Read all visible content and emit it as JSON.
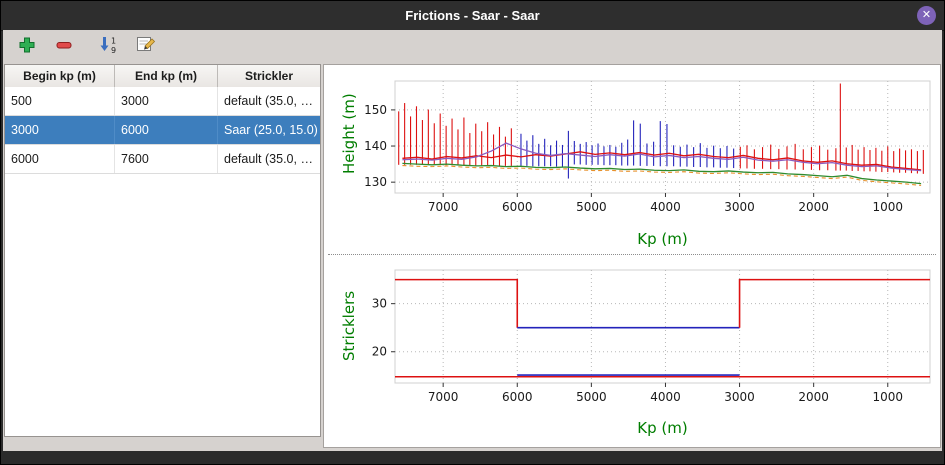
{
  "window": {
    "title": "Frictions - Saar - Saar",
    "close_glyph": "✕"
  },
  "toolbar": {
    "buttons": [
      {
        "label": "add",
        "icon": "plus-icon"
      },
      {
        "label": "remove",
        "icon": "minus-icon"
      },
      {
        "label": "sort",
        "icon": "sort-numeric-icon"
      },
      {
        "label": "edit",
        "icon": "edit-icon"
      }
    ]
  },
  "table": {
    "columns": [
      "Begin kp (m)",
      "End kp (m)",
      "Strickler"
    ],
    "rows": [
      {
        "begin": "500",
        "end": "3000",
        "strickler": "default (35.0, …"
      },
      {
        "begin": "3000",
        "end": "6000",
        "strickler": "Saar (25.0, 15.0)"
      },
      {
        "begin": "6000",
        "end": "7600",
        "strickler": "default (35.0, …"
      }
    ],
    "selected_index": 1
  },
  "colors": {
    "accent_selection": "#3d7ebd",
    "axis_label_green": "#007d00",
    "series_red": "#dd1111",
    "series_blue": "#2323bb",
    "series_purple": "#8a5bbf",
    "series_green": "#2e8b2e",
    "series_orange": "#e8902a"
  },
  "chart_data": [
    {
      "type": "line",
      "title": "",
      "xlabel": "Kp (m)",
      "ylabel": "Height (m)",
      "xlim": [
        7650,
        430
      ],
      "ylim": [
        127,
        158
      ],
      "xticks": [
        7000,
        6000,
        5000,
        4000,
        3000,
        2000,
        1000
      ],
      "yticks": [
        130,
        140,
        150
      ],
      "grid": true,
      "x": [
        7550,
        7350,
        7150,
        6950,
        6750,
        6550,
        6350,
        6150,
        5950,
        5750,
        5550,
        5350,
        5150,
        4950,
        4750,
        4550,
        4350,
        4150,
        3950,
        3750,
        3550,
        3350,
        3150,
        2950,
        2750,
        2550,
        2350,
        2150,
        1950,
        1750,
        1550,
        1350,
        1150,
        950,
        750,
        550
      ],
      "series": [
        {
          "name": "water-level-main",
          "color": "#dd1111",
          "width": 1.3,
          "values": [
            136.6,
            136.9,
            136.4,
            137.1,
            136.7,
            137.3,
            136.8,
            137.5,
            137.0,
            137.6,
            137.2,
            137.8,
            138.4,
            137.7,
            138.1,
            137.6,
            138.2,
            137.5,
            138.0,
            137.3,
            137.7,
            137.1,
            136.8,
            137.4,
            136.6,
            136.2,
            136.7,
            135.9,
            135.5,
            135.9,
            135.1,
            134.7,
            134.9,
            134.2,
            133.8,
            133.4
          ]
        },
        {
          "name": "water-level-secondary",
          "color": "#8a5bbf",
          "width": 1.3,
          "values": [
            136.2,
            136.4,
            136.1,
            136.6,
            136.3,
            137.0,
            138.6,
            140.8,
            139.2,
            138.0,
            137.4,
            137.9,
            137.5,
            137.1,
            137.6,
            137.2,
            137.8,
            137.0,
            137.4,
            136.8,
            137.1,
            136.6,
            136.3,
            136.9,
            136.1,
            135.8,
            136.2,
            135.5,
            135.1,
            135.4,
            134.7,
            134.3,
            134.5,
            133.9,
            133.5,
            133.2
          ]
        },
        {
          "name": "bed-elevation",
          "color": "#2e8b2e",
          "width": 1.3,
          "values": [
            135.2,
            135.0,
            134.8,
            135.0,
            134.7,
            134.5,
            134.6,
            134.3,
            134.4,
            134.1,
            134.0,
            134.2,
            133.9,
            133.7,
            133.8,
            133.5,
            133.6,
            133.3,
            133.2,
            133.4,
            133.0,
            132.9,
            133.1,
            132.8,
            132.6,
            132.7,
            132.3,
            132.1,
            131.8,
            131.5,
            131.9,
            131.0,
            130.6,
            130.3,
            130.0,
            129.6
          ]
        },
        {
          "name": "bed-elevation-dashed",
          "color": "#e8902a",
          "width": 1.1,
          "dash": "4,3",
          "values": [
            134.6,
            134.4,
            134.3,
            134.5,
            134.2,
            134.0,
            134.1,
            133.8,
            133.9,
            133.6,
            133.5,
            133.7,
            133.4,
            133.2,
            133.3,
            133.0,
            133.1,
            132.8,
            132.7,
            132.9,
            132.5,
            132.4,
            132.6,
            132.3,
            132.1,
            132.2,
            131.8,
            131.6,
            131.3,
            131.0,
            131.4,
            130.5,
            130.1,
            129.8,
            129.5,
            129.1
          ]
        }
      ],
      "spikes": [
        {
          "name": "profile-spikes-default-zone",
          "color": "#dd1111",
          "lines": [
            [
              7600,
              134.8,
              149.6
            ],
            [
              7520,
              134.8,
              151.9
            ],
            [
              7440,
              134.8,
              148.2
            ],
            [
              7360,
              134.8,
              151.0
            ],
            [
              7280,
              134.8,
              147.2
            ],
            [
              7200,
              134.8,
              150.1
            ],
            [
              7120,
              134.8,
              146.3
            ],
            [
              7040,
              134.8,
              149.0
            ],
            [
              6960,
              134.7,
              145.6
            ],
            [
              6880,
              134.7,
              147.6
            ],
            [
              6800,
              134.7,
              144.6
            ],
            [
              6720,
              134.7,
              147.9
            ],
            [
              6640,
              134.6,
              143.6
            ],
            [
              6560,
              134.6,
              146.2
            ],
            [
              6480,
              134.6,
              144.1
            ],
            [
              6400,
              134.6,
              146.6
            ],
            [
              6320,
              134.5,
              143.2
            ],
            [
              6240,
              134.5,
              145.3
            ],
            [
              6160,
              134.5,
              142.6
            ],
            [
              6080,
              134.5,
              144.9
            ],
            [
              2990,
              133.8,
              139.8
            ],
            [
              2900,
              133.8,
              140.2
            ],
            [
              2800,
              133.7,
              139.1
            ],
            [
              2690,
              133.7,
              139.7
            ],
            [
              2580,
              133.6,
              140.4
            ],
            [
              2470,
              133.6,
              139.2
            ],
            [
              2360,
              133.5,
              139.9
            ],
            [
              2250,
              133.5,
              140.6
            ],
            [
              2140,
              133.4,
              139.1
            ],
            [
              2030,
              133.4,
              139.7
            ],
            [
              1920,
              133.3,
              140.1
            ],
            [
              1810,
              133.3,
              139.0
            ],
            [
              1700,
              133.2,
              139.4
            ],
            [
              1640,
              133.2,
              157.3
            ],
            [
              1560,
              133.2,
              139.6
            ],
            [
              1480,
              133.1,
              140.3
            ],
            [
              1400,
              133.1,
              139.0
            ],
            [
              1320,
              133.0,
              139.7
            ],
            [
              1240,
              133.0,
              138.9
            ],
            [
              1160,
              132.9,
              139.5
            ],
            [
              1080,
              132.8,
              138.7
            ],
            [
              1000,
              132.8,
              139.9
            ],
            [
              920,
              132.7,
              138.6
            ],
            [
              840,
              132.6,
              139.3
            ],
            [
              760,
              132.6,
              138.8
            ],
            [
              680,
              132.5,
              139.1
            ],
            [
              600,
              132.4,
              138.6
            ],
            [
              520,
              132.3,
              138.9
            ]
          ]
        },
        {
          "name": "profile-spikes-saar-zone",
          "color": "#2323bb",
          "lines": [
            [
              5950,
              134.5,
              143.4
            ],
            [
              5870,
              134.5,
              141.5
            ],
            [
              5790,
              134.4,
              143.0
            ],
            [
              5710,
              134.4,
              140.6
            ],
            [
              5630,
              134.4,
              142.0
            ],
            [
              5550,
              134.4,
              140.2
            ],
            [
              5470,
              134.3,
              141.5
            ],
            [
              5390,
              134.3,
              140.3
            ],
            [
              5310,
              131.0,
              144.2
            ],
            [
              5230,
              134.9,
              141.4
            ],
            [
              5150,
              134.9,
              140.6
            ],
            [
              5070,
              134.8,
              141.1
            ],
            [
              4990,
              134.8,
              140.2
            ],
            [
              4910,
              134.8,
              140.7
            ],
            [
              4830,
              134.7,
              139.9
            ],
            [
              4750,
              134.7,
              140.3
            ],
            [
              4670,
              134.7,
              139.8
            ],
            [
              4590,
              134.6,
              140.9
            ],
            [
              4510,
              134.6,
              141.8
            ],
            [
              4430,
              134.6,
              147.1
            ],
            [
              4340,
              134.5,
              146.2
            ],
            [
              4250,
              134.5,
              140.7
            ],
            [
              4160,
              134.5,
              141.2
            ],
            [
              4070,
              134.4,
              146.9
            ],
            [
              3980,
              134.4,
              146.1
            ],
            [
              3890,
              134.4,
              140.2
            ],
            [
              3800,
              134.3,
              139.8
            ],
            [
              3710,
              134.3,
              140.4
            ],
            [
              3620,
              134.2,
              139.7
            ],
            [
              3530,
              134.2,
              140.8
            ],
            [
              3440,
              134.1,
              139.5
            ],
            [
              3350,
              134.1,
              140.1
            ],
            [
              3260,
              134.0,
              139.4
            ],
            [
              3170,
              134.0,
              140.0
            ],
            [
              3080,
              133.9,
              139.3
            ]
          ]
        }
      ]
    },
    {
      "type": "step",
      "title": "",
      "xlabel": "Kp (m)",
      "ylabel": "Stricklers",
      "xlim": [
        7650,
        430
      ],
      "ylim": [
        13.5,
        37
      ],
      "xticks": [
        7000,
        6000,
        5000,
        4000,
        3000,
        2000,
        1000
      ],
      "yticks": [
        20,
        30
      ],
      "grid": true,
      "segments": [
        {
          "name": "main-channel-default-left",
          "color": "#dd1111",
          "points": [
            [
              7650,
              35
            ],
            [
              6000,
              35
            ],
            [
              6000,
              25
            ]
          ]
        },
        {
          "name": "main-channel-saar",
          "color": "#2323bb",
          "points": [
            [
              6000,
              25
            ],
            [
              3000,
              25
            ]
          ]
        },
        {
          "name": "main-channel-default-right",
          "color": "#dd1111",
          "points": [
            [
              3000,
              25
            ],
            [
              3000,
              35
            ],
            [
              430,
              35
            ]
          ]
        },
        {
          "name": "floodplain-default",
          "color": "#dd1111",
          "points": [
            [
              7650,
              14.8
            ],
            [
              430,
              14.8
            ]
          ]
        },
        {
          "name": "floodplain-saar",
          "color": "#2323bb",
          "points": [
            [
              6000,
              15.15
            ],
            [
              3000,
              15.15
            ]
          ]
        }
      ]
    }
  ]
}
